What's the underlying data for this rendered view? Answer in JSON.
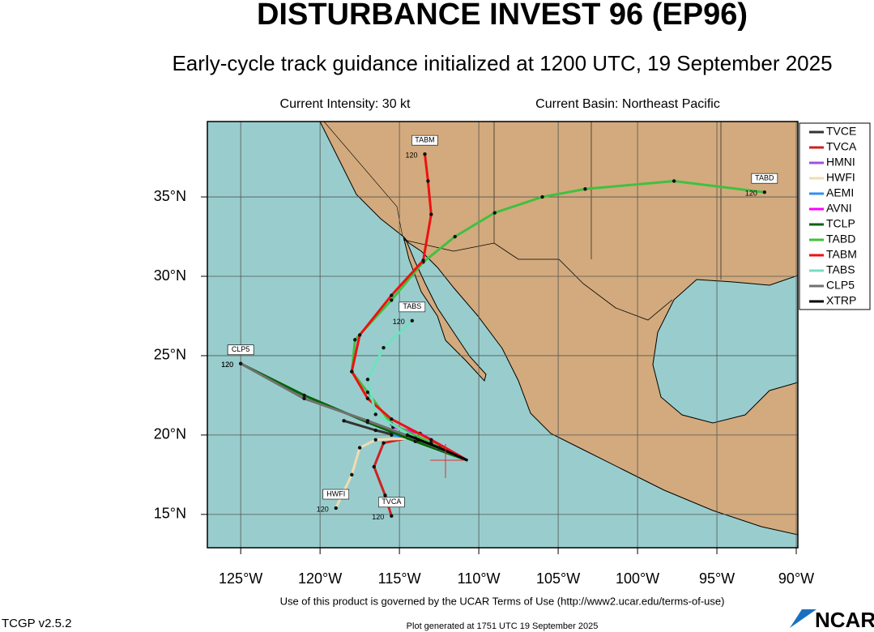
{
  "header": {
    "title": "DISTURBANCE INVEST 96 (EP96)",
    "subtitle": "Early-cycle track guidance initialized at 1200 UTC, 19 September 2025",
    "intensity": "Current Intensity: 30 kt",
    "basin": "Current Basin: Northeast Pacific"
  },
  "map": {
    "xlim": [
      -127.1,
      -89.9
    ],
    "ylim": [
      12.9,
      39.75
    ],
    "xticks": [
      {
        "value": -125,
        "label": "125°W"
      },
      {
        "value": -120,
        "label": "120°W"
      },
      {
        "value": -115,
        "label": "115°W"
      },
      {
        "value": -110,
        "label": "110°W"
      },
      {
        "value": -105,
        "label": "105°W"
      },
      {
        "value": -100,
        "label": "100°W"
      },
      {
        "value": -95,
        "label": "95°W"
      },
      {
        "value": -90,
        "label": "90°W"
      }
    ],
    "yticks": [
      {
        "value": 15,
        "label": "15°N"
      },
      {
        "value": 20,
        "label": "20°N"
      },
      {
        "value": 25,
        "label": "25°N"
      },
      {
        "value": 30,
        "label": "30°N"
      },
      {
        "value": 35,
        "label": "35°N"
      }
    ],
    "grid": true,
    "tracks": [
      {
        "name": "TVCE",
        "color": "#333333",
        "lon": [
          -110.7,
          -112.5,
          -114.5,
          -116.5,
          -118.5
        ],
        "lat": [
          18.4,
          19.2,
          19.8,
          20.3,
          20.9
        ]
      },
      {
        "name": "TVCA",
        "color": "#cc2222",
        "lon": [
          -110.7,
          -114.5,
          -116.0,
          -116.6,
          -115.9,
          -115.5
        ],
        "lat": [
          18.4,
          19.8,
          19.5,
          18.0,
          16.2,
          14.9
        ],
        "end_hour": "120"
      },
      {
        "name": "HMNI",
        "color": "#a050e0",
        "lon": [
          -110.7,
          -113.5,
          -115.5
        ],
        "lat": [
          18.4,
          19.6,
          20.2
        ]
      },
      {
        "name": "HWFI",
        "color": "#f0dcb0",
        "lon": [
          -110.7,
          -114.0,
          -116.5,
          -117.5,
          -118.0,
          -119.0
        ],
        "lat": [
          18.4,
          19.8,
          19.7,
          19.2,
          17.5,
          15.4
        ],
        "end_hour": "120"
      },
      {
        "name": "AEMI",
        "color": "#3090f0",
        "lon": [
          -110.7,
          -113.5,
          -115.5
        ],
        "lat": [
          18.4,
          19.7,
          20.0
        ]
      },
      {
        "name": "AVNI",
        "color": "#ff00ff",
        "lon": [
          -110.7,
          -113.7,
          -115.4
        ],
        "lat": [
          18.4,
          20.1,
          20.5
        ]
      },
      {
        "name": "TCLP",
        "color": "#006400",
        "lon": [
          -110.7,
          -114.0,
          -117.0,
          -121.0,
          -125.0
        ],
        "lat": [
          18.4,
          19.6,
          20.8,
          22.5,
          24.5
        ],
        "end_hour": "120"
      },
      {
        "name": "TABD",
        "color": "#40c040",
        "lon": [
          -110.7,
          -113.0,
          -115.5,
          -117.0,
          -118.0,
          -117.8,
          -115.5,
          -113.5,
          -111.5,
          -109.0,
          -106.0,
          -103.3,
          -97.7,
          -92.0
        ],
        "lat": [
          18.4,
          19.5,
          20.7,
          22.7,
          24.0,
          26.0,
          28.5,
          30.9,
          32.5,
          34.0,
          35.0,
          35.5,
          36.0,
          35.3
        ],
        "end_hour": "120"
      },
      {
        "name": "TABM",
        "color": "#ee1111",
        "lon": [
          -110.7,
          -113.0,
          -115.5,
          -117.0,
          -118.0,
          -117.5,
          -115.5,
          -113.5,
          -113.0,
          -113.2,
          -113.4
        ],
        "lat": [
          18.4,
          19.7,
          21.0,
          22.3,
          24.0,
          26.3,
          28.8,
          31.0,
          33.9,
          36.0,
          37.7
        ],
        "end_hour": "120"
      },
      {
        "name": "TABS",
        "color": "#70e0c0",
        "lon": [
          -110.7,
          -114.0,
          -116.5,
          -117.0,
          -116.0,
          -114.2
        ],
        "lat": [
          18.4,
          19.8,
          21.3,
          23.5,
          25.5,
          27.2
        ],
        "end_hour": "120"
      },
      {
        "name": "CLP5",
        "color": "#707070",
        "lon": [
          -110.7,
          -113.8,
          -117.0,
          -121.0,
          -125.0
        ],
        "lat": [
          18.4,
          19.7,
          20.9,
          22.3,
          24.5
        ],
        "end_hour": "120"
      },
      {
        "name": "XTRP",
        "color": "#000000",
        "lon": [
          -110.7,
          -112.5,
          -114.5
        ],
        "lat": [
          18.4,
          19.2,
          20.0
        ]
      }
    ]
  },
  "footer": {
    "terms": "Use of this product is governed by the UCAR Terms of Use (http://www2.ucar.edu/terms-of-use)",
    "version": "TCGP v2.5.2",
    "generated": "Plot generated at 1751 UTC   19 September 2025",
    "logo": "NCAR"
  }
}
